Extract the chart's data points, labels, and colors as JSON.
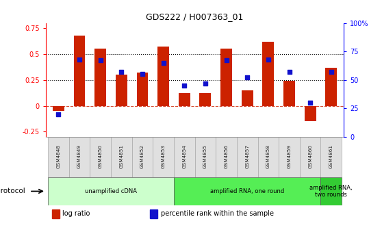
{
  "title": "GDS222 / H007363_01",
  "samples": [
    "GSM4848",
    "GSM4849",
    "GSM4850",
    "GSM4851",
    "GSM4852",
    "GSM4853",
    "GSM4854",
    "GSM4855",
    "GSM4856",
    "GSM4857",
    "GSM4858",
    "GSM4859",
    "GSM4860",
    "GSM4861"
  ],
  "log_ratio": [
    -0.05,
    0.68,
    0.55,
    0.3,
    0.32,
    0.57,
    0.12,
    0.12,
    0.55,
    0.15,
    0.62,
    0.24,
    -0.15,
    0.37
  ],
  "percentile_pct": [
    20,
    68,
    67,
    57,
    55,
    65,
    45,
    47,
    67,
    52,
    68,
    57,
    30,
    57
  ],
  "bar_color": "#cc2200",
  "dot_color": "#1111cc",
  "ylim_left": [
    -0.3,
    0.8
  ],
  "ylim_right": [
    0,
    100
  ],
  "yticks_left": [
    -0.25,
    0.0,
    0.25,
    0.5,
    0.75
  ],
  "ytick_labels_left": [
    "-0.25",
    "0",
    "0.25",
    "0.5",
    "0.75"
  ],
  "yticks_right": [
    0,
    25,
    50,
    75,
    100
  ],
  "ytick_labels_right": [
    "0",
    "25",
    "50",
    "75",
    "100%"
  ],
  "hlines": [
    0.25,
    0.5
  ],
  "hline_zero": 0.0,
  "protocol_groups": [
    {
      "label": "unamplified cDNA",
      "start": 0,
      "end": 5,
      "color": "#ccffcc"
    },
    {
      "label": "amplified RNA, one round",
      "start": 6,
      "end": 12,
      "color": "#55ee55"
    },
    {
      "label": "amplified RNA,\ntwo rounds",
      "start": 13,
      "end": 13,
      "color": "#33cc33"
    }
  ],
  "legend_items": [
    {
      "color": "#cc2200",
      "label": "log ratio"
    },
    {
      "color": "#1111cc",
      "label": "percentile rank within the sample"
    }
  ],
  "protocol_label": "protocol",
  "background_color": "#ffffff"
}
